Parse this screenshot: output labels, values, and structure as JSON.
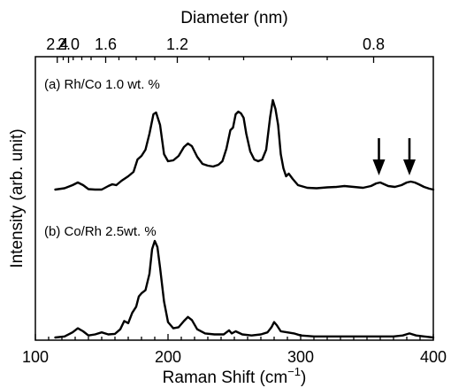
{
  "chart_data": [
    {
      "type": "line",
      "top_axis": {
        "label": "Diameter (nm)",
        "ticks": [
          {
            "label": "2.4",
            "x": 116.5
          },
          {
            "label": "2.0",
            "x": 125
          },
          {
            "label": "1.6",
            "x": 153
          },
          {
            "label": "1.2",
            "x": 207
          },
          {
            "label": "0.8",
            "x": 355
          }
        ],
        "minor_ticks_x": [
          121,
          128.5,
          135,
          142,
          163,
          176,
          190,
          231,
          257,
          293,
          320
        ]
      },
      "xlabel": "Raman Shift (cm⁻¹)",
      "ylabel": "Intensity (arb. unit)",
      "xlim": [
        100,
        400
      ],
      "x_ticks": [
        100,
        200,
        300,
        400
      ],
      "grid": false,
      "y_units": "arbitrary (vertically offset)",
      "series": [
        {
          "name": "(a) Rh/Co 1.0 wt. %",
          "x": [
            115,
            122,
            128,
            132,
            136,
            140,
            145,
            150,
            155,
            158,
            161,
            165,
            170,
            174,
            177,
            180,
            183,
            186,
            189,
            191,
            194,
            197,
            200,
            204,
            208,
            212,
            215,
            218,
            222,
            226,
            230,
            234,
            238,
            241,
            244,
            247,
            249,
            251,
            253,
            255,
            257,
            259,
            262,
            265,
            268,
            271,
            274,
            277,
            279,
            281,
            283,
            285,
            287,
            289,
            291,
            294,
            298,
            305,
            312,
            320,
            327,
            333,
            340,
            347,
            353,
            357,
            360,
            363,
            366,
            371,
            376,
            380,
            383,
            386,
            389,
            393,
            397,
            400
          ],
          "y": [
            0.0,
            0.15,
            0.5,
            0.8,
            0.5,
            0.05,
            0.0,
            0.0,
            0.4,
            0.6,
            0.5,
            1.0,
            1.5,
            2.0,
            3.4,
            3.8,
            4.5,
            6.3,
            8.5,
            8.7,
            7.3,
            4.0,
            3.2,
            3.3,
            3.8,
            4.8,
            5.2,
            4.9,
            3.7,
            2.9,
            2.7,
            2.6,
            2.8,
            3.2,
            4.6,
            6.7,
            7.0,
            8.5,
            8.8,
            8.6,
            8.1,
            6.3,
            4.3,
            3.4,
            3.2,
            3.4,
            4.5,
            8.2,
            10.1,
            9.1,
            7.3,
            4.0,
            2.4,
            1.5,
            1.8,
            1.2,
            0.5,
            0.2,
            0.15,
            0.25,
            0.3,
            0.4,
            0.3,
            0.2,
            0.4,
            0.7,
            0.8,
            0.6,
            0.4,
            0.3,
            0.5,
            0.8,
            0.9,
            0.8,
            0.6,
            0.3,
            0.1,
            0.0
          ],
          "arrows_at_x": [
            359,
            382
          ]
        },
        {
          "name": "(b) Co/Rh 2.5wt. %",
          "x": [
            115,
            122,
            128,
            132,
            136,
            140,
            145,
            150,
            155,
            160,
            164,
            167,
            170,
            173,
            176,
            178,
            180,
            183,
            186,
            188,
            190,
            192,
            194,
            197,
            200,
            204,
            208,
            212,
            215,
            218,
            222,
            228,
            235,
            242,
            246,
            248,
            251,
            256,
            263,
            270,
            275,
            278,
            280,
            282,
            285,
            290,
            295,
            300,
            310,
            320,
            340,
            360,
            370,
            377,
            382,
            387,
            393,
            400
          ],
          "y": [
            0.0,
            0.1,
            0.5,
            0.9,
            0.6,
            0.2,
            0.3,
            0.5,
            0.3,
            0.35,
            0.8,
            1.6,
            1.4,
            2.4,
            3.0,
            4.0,
            4.3,
            4.6,
            6.2,
            8.6,
            9.4,
            8.8,
            6.8,
            3.5,
            1.5,
            0.9,
            1.0,
            1.6,
            2.0,
            1.7,
            0.8,
            0.4,
            0.3,
            0.3,
            0.7,
            0.4,
            0.6,
            0.3,
            0.2,
            0.3,
            0.5,
            1.0,
            1.5,
            1.2,
            0.6,
            0.5,
            0.4,
            0.2,
            0.1,
            0.1,
            0.1,
            0.1,
            0.1,
            0.2,
            0.4,
            0.2,
            0.1,
            0.0
          ]
        }
      ]
    }
  ]
}
